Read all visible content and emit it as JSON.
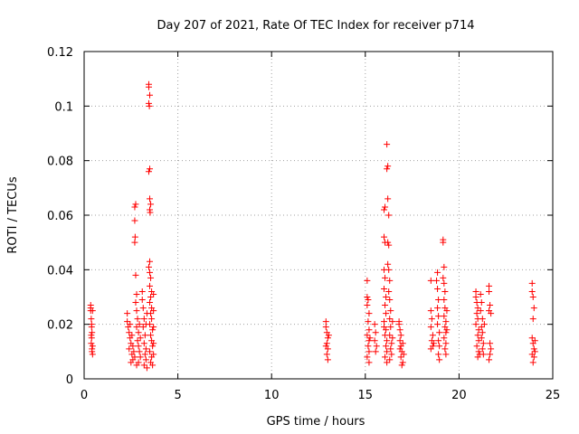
{
  "chart_data": {
    "type": "scatter",
    "title": "Day 207 of 2021, Rate Of TEC Index for receiver p714",
    "xlabel": "GPS time / hours",
    "ylabel": "ROTI / TECUs",
    "xlim": [
      0,
      25
    ],
    "ylim": [
      0,
      0.12
    ],
    "xticks": [
      0,
      5,
      10,
      15,
      20,
      25
    ],
    "xtick_labels": [
      "0",
      "5",
      "10",
      "15",
      "20",
      "25"
    ],
    "yticks": [
      0,
      0.02,
      0.04,
      0.06,
      0.08,
      0.1,
      0.12
    ],
    "ytick_labels": [
      "0",
      "0.02",
      "0.04",
      "0.06",
      "0.08",
      "0.1",
      "0.12"
    ],
    "grid": true,
    "marker": "+",
    "color": "#ff0000",
    "series": [
      {
        "points": [
          [
            0.35,
            0.027
          ],
          [
            0.35,
            0.025
          ],
          [
            0.38,
            0.022
          ],
          [
            0.4,
            0.019
          ],
          [
            0.42,
            0.017
          ],
          [
            0.4,
            0.015
          ],
          [
            0.38,
            0.013
          ],
          [
            0.42,
            0.011
          ],
          [
            0.45,
            0.009
          ],
          [
            0.35,
            0.026
          ],
          [
            0.45,
            0.025
          ],
          [
            0.4,
            0.02
          ],
          [
            0.38,
            0.016
          ],
          [
            0.45,
            0.012
          ],
          [
            0.42,
            0.01
          ],
          [
            2.3,
            0.024
          ],
          [
            2.3,
            0.021
          ],
          [
            2.35,
            0.019
          ],
          [
            2.4,
            0.017
          ],
          [
            2.45,
            0.015
          ],
          [
            2.5,
            0.013
          ],
          [
            2.4,
            0.011
          ],
          [
            2.55,
            0.009
          ],
          [
            2.6,
            0.007
          ],
          [
            2.5,
            0.006
          ],
          [
            2.45,
            0.02
          ],
          [
            2.55,
            0.016
          ],
          [
            2.6,
            0.012
          ],
          [
            2.65,
            0.01
          ],
          [
            2.7,
            0.008
          ],
          [
            2.75,
            0.064
          ],
          [
            2.7,
            0.063
          ],
          [
            2.7,
            0.058
          ],
          [
            2.72,
            0.052
          ],
          [
            2.7,
            0.05
          ],
          [
            2.75,
            0.038
          ],
          [
            2.8,
            0.031
          ],
          [
            2.75,
            0.028
          ],
          [
            2.8,
            0.025
          ],
          [
            2.85,
            0.022
          ],
          [
            2.8,
            0.019
          ],
          [
            2.9,
            0.017
          ],
          [
            2.85,
            0.014
          ],
          [
            2.9,
            0.012
          ],
          [
            2.95,
            0.01
          ],
          [
            3.0,
            0.008
          ],
          [
            2.9,
            0.006
          ],
          [
            2.8,
            0.005
          ],
          [
            3.0,
            0.015
          ],
          [
            2.95,
            0.02
          ],
          [
            3.1,
            0.032
          ],
          [
            3.1,
            0.029
          ],
          [
            3.15,
            0.026
          ],
          [
            3.2,
            0.022
          ],
          [
            3.15,
            0.019
          ],
          [
            3.25,
            0.016
          ],
          [
            3.2,
            0.013
          ],
          [
            3.3,
            0.011
          ],
          [
            3.25,
            0.009
          ],
          [
            3.3,
            0.007
          ],
          [
            3.2,
            0.005
          ],
          [
            3.35,
            0.004
          ],
          [
            3.3,
            0.02
          ],
          [
            3.35,
            0.024
          ],
          [
            3.45,
            0.108
          ],
          [
            3.45,
            0.107
          ],
          [
            3.5,
            0.104
          ],
          [
            3.45,
            0.101
          ],
          [
            3.48,
            0.1
          ],
          [
            3.5,
            0.077
          ],
          [
            3.45,
            0.076
          ],
          [
            3.5,
            0.066
          ],
          [
            3.55,
            0.064
          ],
          [
            3.5,
            0.062
          ],
          [
            3.52,
            0.061
          ],
          [
            3.5,
            0.043
          ],
          [
            3.45,
            0.041
          ],
          [
            3.5,
            0.039
          ],
          [
            3.55,
            0.037
          ],
          [
            3.5,
            0.034
          ],
          [
            3.6,
            0.032
          ],
          [
            3.55,
            0.03
          ],
          [
            3.5,
            0.028
          ],
          [
            3.6,
            0.026
          ],
          [
            3.55,
            0.024
          ],
          [
            3.6,
            0.022
          ],
          [
            3.5,
            0.02
          ],
          [
            3.65,
            0.018
          ],
          [
            3.55,
            0.016
          ],
          [
            3.6,
            0.014
          ],
          [
            3.65,
            0.012
          ],
          [
            3.5,
            0.01
          ],
          [
            3.6,
            0.008
          ],
          [
            3.55,
            0.006
          ],
          [
            3.65,
            0.005
          ],
          [
            3.7,
            0.031
          ],
          [
            3.7,
            0.025
          ],
          [
            3.7,
            0.019
          ],
          [
            3.7,
            0.013
          ],
          [
            3.7,
            0.009
          ],
          [
            12.9,
            0.021
          ],
          [
            12.9,
            0.019
          ],
          [
            12.95,
            0.017
          ],
          [
            13.0,
            0.015
          ],
          [
            12.95,
            0.013
          ],
          [
            13.0,
            0.011
          ],
          [
            12.95,
            0.009
          ],
          [
            13.0,
            0.007
          ],
          [
            12.9,
            0.012
          ],
          [
            13.05,
            0.016
          ],
          [
            15.1,
            0.036
          ],
          [
            15.1,
            0.03
          ],
          [
            15.15,
            0.029
          ],
          [
            15.1,
            0.027
          ],
          [
            15.2,
            0.024
          ],
          [
            15.15,
            0.021
          ],
          [
            15.2,
            0.018
          ],
          [
            15.1,
            0.016
          ],
          [
            15.2,
            0.014
          ],
          [
            15.15,
            0.012
          ],
          [
            15.2,
            0.01
          ],
          [
            15.1,
            0.008
          ],
          [
            15.2,
            0.006
          ],
          [
            15.25,
            0.015
          ],
          [
            15.5,
            0.02
          ],
          [
            15.55,
            0.017
          ],
          [
            15.5,
            0.014
          ],
          [
            15.6,
            0.012
          ],
          [
            15.55,
            0.01
          ],
          [
            16.0,
            0.062
          ],
          [
            16.05,
            0.063
          ],
          [
            16.0,
            0.052
          ],
          [
            16.05,
            0.05
          ],
          [
            16.0,
            0.04
          ],
          [
            16.05,
            0.037
          ],
          [
            16.0,
            0.033
          ],
          [
            16.1,
            0.03
          ],
          [
            16.05,
            0.027
          ],
          [
            16.1,
            0.024
          ],
          [
            16.0,
            0.021
          ],
          [
            16.1,
            0.018
          ],
          [
            16.05,
            0.016
          ],
          [
            16.15,
            0.014
          ],
          [
            16.1,
            0.012
          ],
          [
            16.15,
            0.01
          ],
          [
            16.05,
            0.008
          ],
          [
            16.15,
            0.006
          ],
          [
            16.0,
            0.019
          ],
          [
            16.15,
            0.086
          ],
          [
            16.2,
            0.078
          ],
          [
            16.15,
            0.077
          ],
          [
            16.2,
            0.066
          ],
          [
            16.25,
            0.06
          ],
          [
            16.2,
            0.05
          ],
          [
            16.25,
            0.049
          ],
          [
            16.2,
            0.042
          ],
          [
            16.25,
            0.04
          ],
          [
            16.3,
            0.036
          ],
          [
            16.25,
            0.032
          ],
          [
            16.3,
            0.029
          ],
          [
            16.35,
            0.025
          ],
          [
            16.3,
            0.022
          ],
          [
            16.35,
            0.019
          ],
          [
            16.3,
            0.016
          ],
          [
            16.4,
            0.013
          ],
          [
            16.35,
            0.011
          ],
          [
            16.4,
            0.009
          ],
          [
            16.3,
            0.007
          ],
          [
            16.45,
            0.015
          ],
          [
            16.45,
            0.021
          ],
          [
            16.8,
            0.021
          ],
          [
            16.8,
            0.02
          ],
          [
            16.85,
            0.018
          ],
          [
            16.9,
            0.016
          ],
          [
            16.85,
            0.014
          ],
          [
            16.9,
            0.012
          ],
          [
            16.95,
            0.01
          ],
          [
            16.9,
            0.008
          ],
          [
            17.0,
            0.006
          ],
          [
            16.95,
            0.005
          ],
          [
            17.0,
            0.013
          ],
          [
            17.05,
            0.009
          ],
          [
            16.85,
            0.011
          ],
          [
            18.5,
            0.036
          ],
          [
            18.5,
            0.025
          ],
          [
            18.55,
            0.022
          ],
          [
            18.5,
            0.019
          ],
          [
            18.6,
            0.016
          ],
          [
            18.55,
            0.014
          ],
          [
            18.6,
            0.012
          ],
          [
            18.5,
            0.011
          ],
          [
            18.65,
            0.013
          ],
          [
            18.85,
            0.039
          ],
          [
            18.8,
            0.036
          ],
          [
            18.85,
            0.033
          ],
          [
            18.9,
            0.029
          ],
          [
            18.85,
            0.026
          ],
          [
            18.9,
            0.023
          ],
          [
            18.85,
            0.02
          ],
          [
            18.95,
            0.017
          ],
          [
            18.9,
            0.014
          ],
          [
            18.95,
            0.012
          ],
          [
            18.9,
            0.009
          ],
          [
            18.95,
            0.007
          ],
          [
            19.15,
            0.051
          ],
          [
            19.15,
            0.05
          ],
          [
            19.2,
            0.041
          ],
          [
            19.15,
            0.037
          ],
          [
            19.2,
            0.035
          ],
          [
            19.25,
            0.032
          ],
          [
            19.2,
            0.029
          ],
          [
            19.25,
            0.026
          ],
          [
            19.2,
            0.023
          ],
          [
            19.3,
            0.021
          ],
          [
            19.25,
            0.019
          ],
          [
            19.3,
            0.017
          ],
          [
            19.2,
            0.015
          ],
          [
            19.3,
            0.013
          ],
          [
            19.25,
            0.011
          ],
          [
            19.3,
            0.009
          ],
          [
            19.35,
            0.018
          ],
          [
            19.35,
            0.025
          ],
          [
            20.9,
            0.032
          ],
          [
            20.9,
            0.03
          ],
          [
            20.95,
            0.028
          ],
          [
            21.0,
            0.026
          ],
          [
            20.95,
            0.024
          ],
          [
            21.0,
            0.022
          ],
          [
            20.9,
            0.02
          ],
          [
            21.05,
            0.018
          ],
          [
            21.0,
            0.016
          ],
          [
            21.05,
            0.014
          ],
          [
            20.95,
            0.012
          ],
          [
            21.05,
            0.01
          ],
          [
            21.0,
            0.008
          ],
          [
            21.1,
            0.009
          ],
          [
            21.15,
            0.031
          ],
          [
            21.2,
            0.028
          ],
          [
            21.15,
            0.025
          ],
          [
            21.25,
            0.022
          ],
          [
            21.2,
            0.019
          ],
          [
            21.25,
            0.017
          ],
          [
            21.2,
            0.015
          ],
          [
            21.3,
            0.013
          ],
          [
            21.25,
            0.011
          ],
          [
            21.3,
            0.009
          ],
          [
            21.35,
            0.02
          ],
          [
            21.6,
            0.034
          ],
          [
            21.6,
            0.032
          ],
          [
            21.65,
            0.027
          ],
          [
            21.6,
            0.025
          ],
          [
            21.7,
            0.024
          ],
          [
            21.65,
            0.013
          ],
          [
            21.7,
            0.011
          ],
          [
            21.65,
            0.009
          ],
          [
            21.6,
            0.007
          ],
          [
            23.9,
            0.035
          ],
          [
            23.9,
            0.032
          ],
          [
            23.95,
            0.03
          ],
          [
            24.0,
            0.026
          ],
          [
            23.95,
            0.022
          ],
          [
            23.9,
            0.015
          ],
          [
            23.95,
            0.013
          ],
          [
            24.0,
            0.011
          ],
          [
            23.9,
            0.009
          ],
          [
            24.0,
            0.008
          ],
          [
            23.95,
            0.006
          ],
          [
            24.05,
            0.014
          ],
          [
            24.05,
            0.01
          ]
        ]
      }
    ]
  }
}
